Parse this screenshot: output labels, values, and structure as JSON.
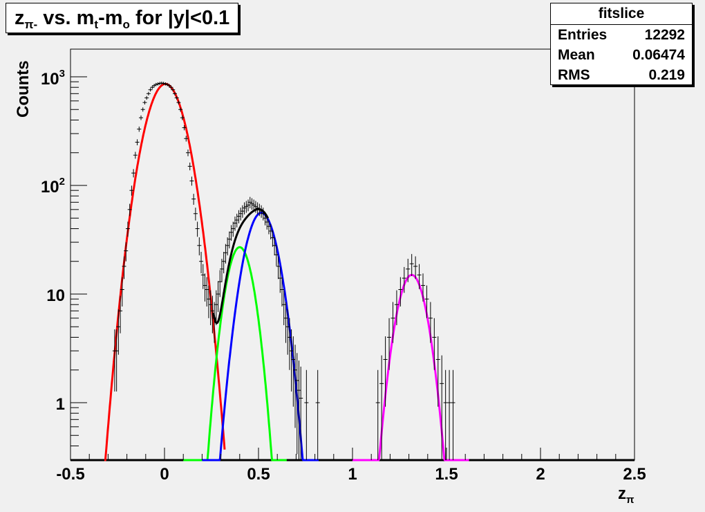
{
  "chart_data": {
    "type": "line",
    "title": "z",
    "title_sub": "π-",
    "title_rest": " vs. m",
    "title_sub2": "t",
    "title_rest2": "-m",
    "title_sub3": "o",
    "title_rest3": " for |y|<0.1",
    "xlabel": "z",
    "xlabel_sub": "π",
    "ylabel": "Counts",
    "xlim": [
      -0.5,
      2.5
    ],
    "ylim": [
      0.3,
      1800
    ],
    "yscale": "log",
    "grid": false,
    "x_ticks": [
      "-0.5",
      "0",
      "0.5",
      "1",
      "1.5",
      "2",
      "2.5"
    ],
    "y_ticks": [
      {
        "base": "1",
        "exp": ""
      },
      {
        "base": "10",
        "exp": ""
      },
      {
        "base": "10",
        "exp": "2"
      },
      {
        "base": "10",
        "exp": "3"
      }
    ],
    "stats": {
      "name": "fitslice",
      "rows": [
        {
          "label": "Entries",
          "value": "12292"
        },
        {
          "label": "Mean",
          "value": "0.06474"
        },
        {
          "label": "RMS",
          "value": "0.219"
        }
      ]
    },
    "series": [
      {
        "color": "#ff0000",
        "amp": 860,
        "mean": 0.005,
        "sigma": 0.08,
        "range": [
          -0.32,
          0.32
        ]
      },
      {
        "color": "#00ff00",
        "amp": 27,
        "mean": 0.4,
        "sigma": 0.057,
        "range": [
          0.1,
          0.65
        ]
      },
      {
        "color": "#0000ff",
        "amp": 56,
        "mean": 0.515,
        "sigma": 0.068,
        "range": [
          0.2,
          0.82
        ]
      },
      {
        "color": "#ff00ff",
        "amp": 15,
        "mean": 1.315,
        "sigma": 0.062,
        "range": [
          1.0,
          1.62
        ]
      },
      {
        "color": "#000000",
        "sum_of": [
          0,
          1,
          2
        ],
        "range": [
          0.26,
          0.55
        ]
      }
    ],
    "points": [
      [
        -0.265,
        3.0
      ],
      [
        -0.255,
        3.0
      ],
      [
        -0.245,
        5.0
      ],
      [
        -0.235,
        7.0
      ],
      [
        -0.225,
        11
      ],
      [
        -0.215,
        18
      ],
      [
        -0.205,
        25
      ],
      [
        -0.195,
        40
      ],
      [
        -0.185,
        60
      ],
      [
        -0.175,
        90
      ],
      [
        -0.165,
        130
      ],
      [
        -0.155,
        190
      ],
      [
        -0.145,
        250
      ],
      [
        -0.135,
        330
      ],
      [
        -0.125,
        420
      ],
      [
        -0.115,
        500
      ],
      [
        -0.105,
        580
      ],
      [
        -0.095,
        640
      ],
      [
        -0.085,
        700
      ],
      [
        -0.075,
        760
      ],
      [
        -0.065,
        800
      ],
      [
        -0.055,
        830
      ],
      [
        -0.045,
        850
      ],
      [
        -0.035,
        860
      ],
      [
        -0.025,
        870
      ],
      [
        -0.015,
        875
      ],
      [
        -0.005,
        870
      ],
      [
        0.005,
        860
      ],
      [
        0.015,
        850
      ],
      [
        0.025,
        830
      ],
      [
        0.035,
        800
      ],
      [
        0.045,
        760
      ],
      [
        0.055,
        700
      ],
      [
        0.065,
        640
      ],
      [
        0.075,
        580
      ],
      [
        0.085,
        500
      ],
      [
        0.095,
        420
      ],
      [
        0.105,
        340
      ],
      [
        0.115,
        270
      ],
      [
        0.125,
        200
      ],
      [
        0.135,
        150
      ],
      [
        0.145,
        110
      ],
      [
        0.155,
        75
      ],
      [
        0.165,
        55
      ],
      [
        0.175,
        40
      ],
      [
        0.185,
        28
      ],
      [
        0.195,
        20
      ],
      [
        0.205,
        15
      ],
      [
        0.215,
        12
      ],
      [
        0.225,
        11
      ],
      [
        0.235,
        9
      ],
      [
        0.245,
        8
      ],
      [
        0.255,
        7
      ],
      [
        0.265,
        6
      ],
      [
        0.275,
        8
      ],
      [
        0.285,
        10
      ],
      [
        0.295,
        13
      ],
      [
        0.305,
        17
      ],
      [
        0.315,
        20
      ],
      [
        0.325,
        24
      ],
      [
        0.335,
        28
      ],
      [
        0.345,
        32
      ],
      [
        0.355,
        37
      ],
      [
        0.365,
        40
      ],
      [
        0.375,
        45
      ],
      [
        0.385,
        48
      ],
      [
        0.395,
        52
      ],
      [
        0.405,
        55
      ],
      [
        0.415,
        58
      ],
      [
        0.425,
        62
      ],
      [
        0.435,
        64
      ],
      [
        0.445,
        66
      ],
      [
        0.455,
        70
      ],
      [
        0.465,
        68
      ],
      [
        0.475,
        66
      ],
      [
        0.485,
        64
      ],
      [
        0.495,
        62
      ],
      [
        0.505,
        60
      ],
      [
        0.515,
        58
      ],
      [
        0.525,
        55
      ],
      [
        0.535,
        50
      ],
      [
        0.545,
        46
      ],
      [
        0.555,
        42
      ],
      [
        0.565,
        38
      ],
      [
        0.575,
        33
      ],
      [
        0.585,
        28
      ],
      [
        0.595,
        23
      ],
      [
        0.605,
        18
      ],
      [
        0.615,
        14
      ],
      [
        0.625,
        11
      ],
      [
        0.635,
        8
      ],
      [
        0.645,
        6
      ],
      [
        0.655,
        5
      ],
      [
        0.665,
        4
      ],
      [
        0.675,
        3
      ],
      [
        0.685,
        2.5
      ],
      [
        0.695,
        2
      ],
      [
        0.705,
        1.6
      ],
      [
        0.715,
        1.3
      ],
      [
        0.725,
        1.1
      ],
      [
        0.755,
        1.0
      ],
      [
        0.815,
        1.0
      ],
      [
        1.135,
        1.0
      ],
      [
        1.155,
        1.5
      ],
      [
        1.175,
        2.5
      ],
      [
        1.195,
        4
      ],
      [
        1.215,
        6
      ],
      [
        1.235,
        8
      ],
      [
        1.255,
        11
      ],
      [
        1.275,
        14
      ],
      [
        1.295,
        17
      ],
      [
        1.315,
        19
      ],
      [
        1.335,
        18
      ],
      [
        1.355,
        15
      ],
      [
        1.375,
        12
      ],
      [
        1.395,
        9
      ],
      [
        1.415,
        6
      ],
      [
        1.435,
        4
      ],
      [
        1.455,
        2.5
      ],
      [
        1.475,
        1.5
      ],
      [
        1.495,
        1.0
      ],
      [
        1.515,
        1.0
      ],
      [
        1.535,
        1.0
      ]
    ]
  }
}
